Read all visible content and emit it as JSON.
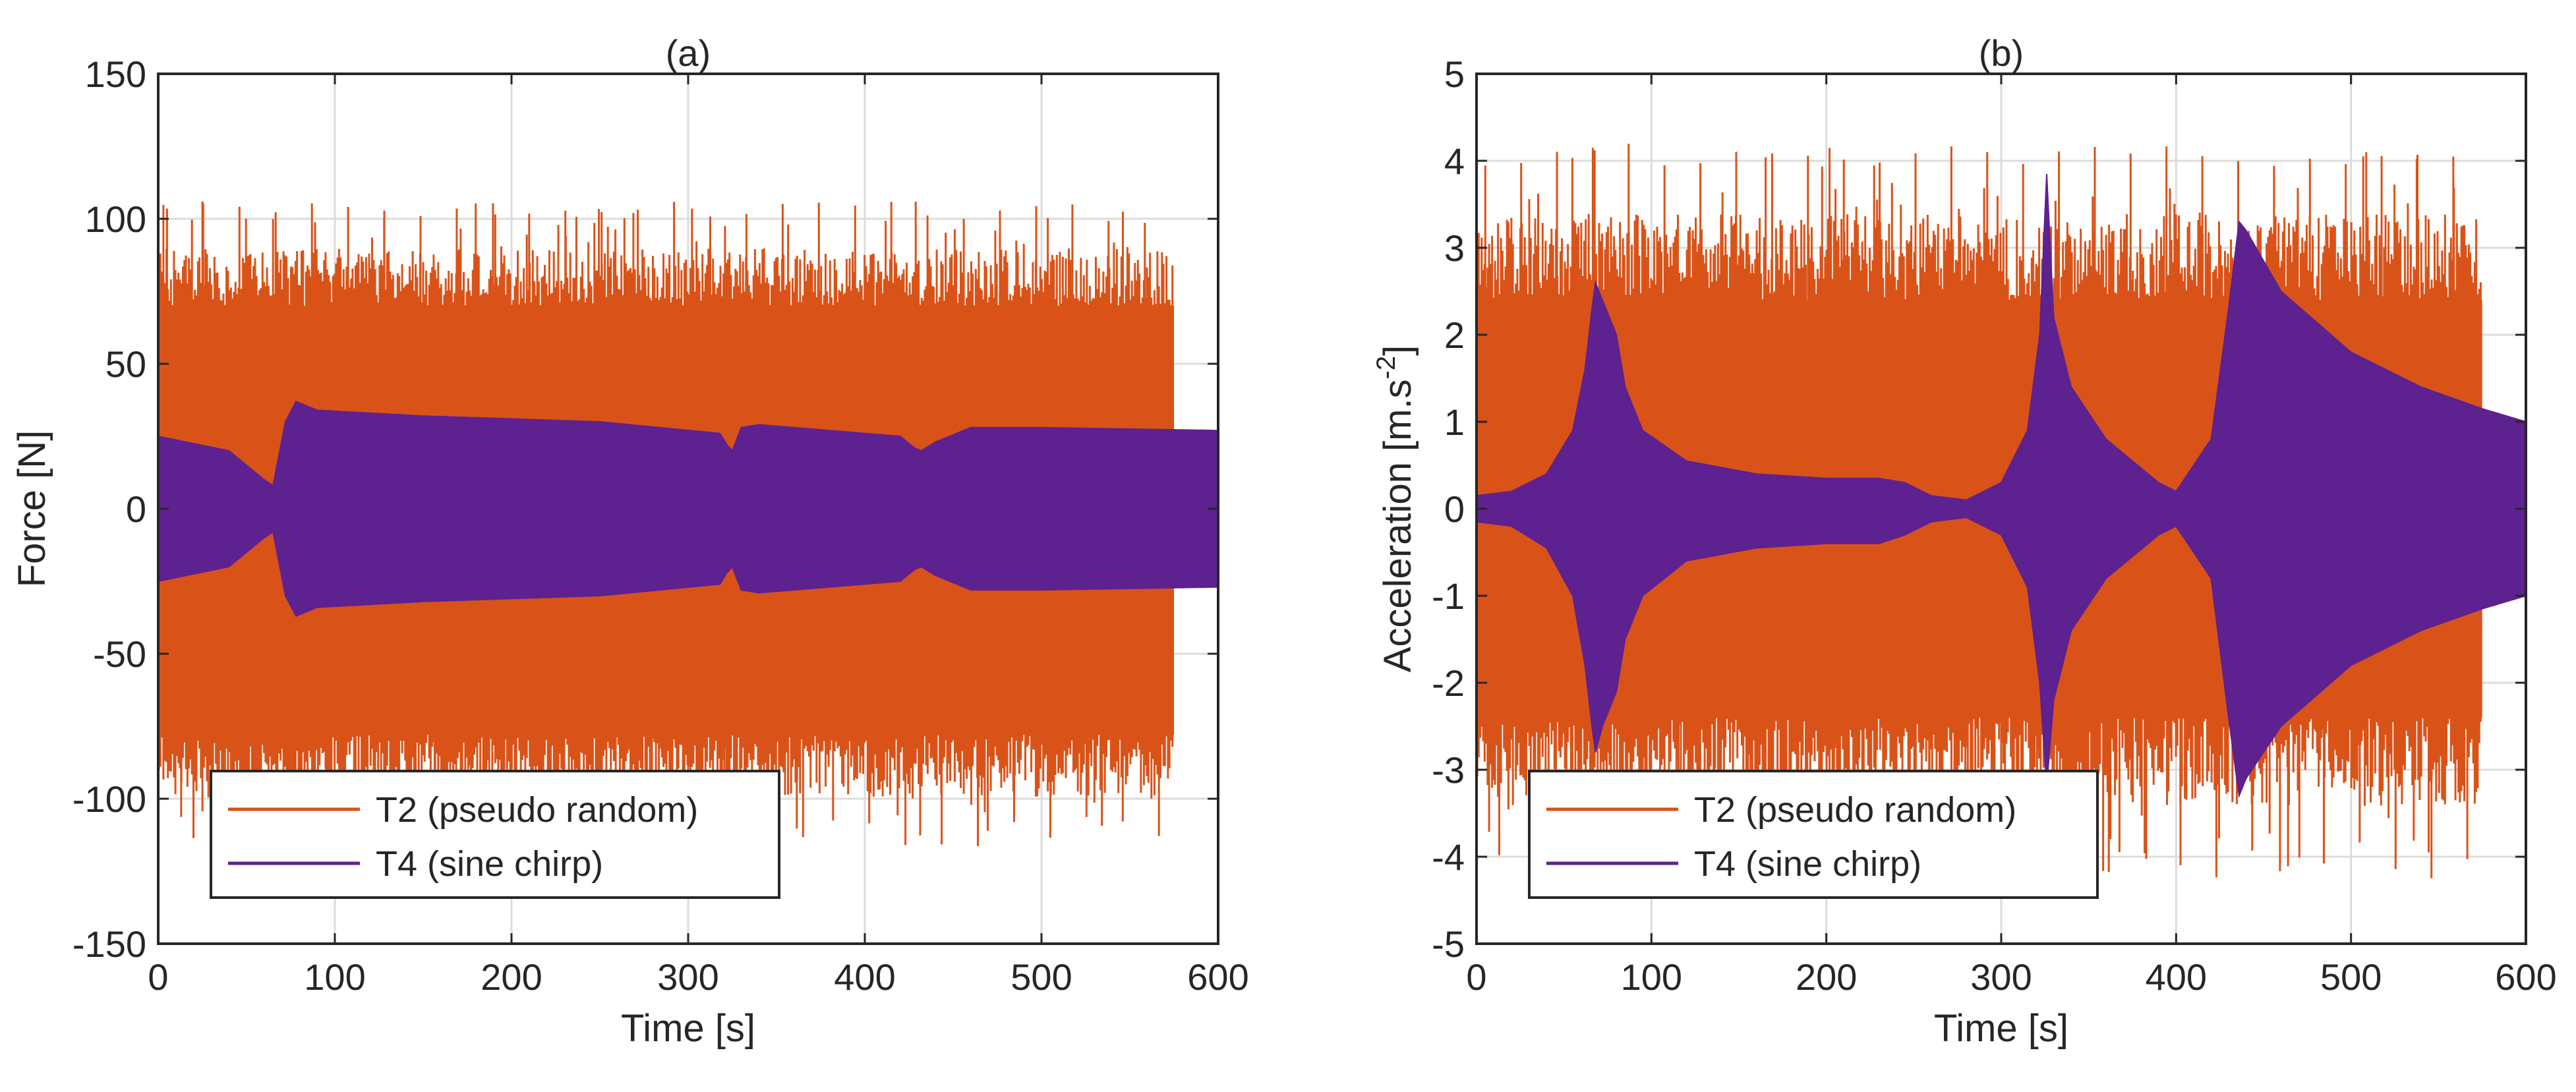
{
  "colors": {
    "t2": "#D95319",
    "t4": "#5E2190",
    "grid": "#DCDCDC",
    "axis": "#262626"
  },
  "chart_data": [
    {
      "id": "a",
      "type": "line",
      "title": "(a)",
      "xlabel": "Time [s]",
      "ylabel": "Force [N]",
      "xlim": [
        0,
        600
      ],
      "ylim": [
        -150,
        150
      ],
      "xticks": [
        "0",
        "100",
        "200",
        "300",
        "400",
        "500",
        "600"
      ],
      "yticks": [
        "150",
        "100",
        "50",
        "0",
        "-50",
        "-100",
        "-150"
      ],
      "grid": true,
      "legend_position": "bottom-left",
      "series": [
        {
          "name": "T2 (pseudo random)",
          "t_end": 575,
          "envelope_t": [
            0,
            575
          ],
          "envelope_upper": [
            70,
            70
          ],
          "envelope_lower": [
            -78,
            -78
          ],
          "spike_top_max": 106,
          "spike_bottom_min": -118
        },
        {
          "name": "T4 (sine chirp)",
          "t_end": 600,
          "envelope_t": [
            0,
            40,
            60,
            65,
            72,
            78,
            90,
            150,
            250,
            318,
            322,
            325,
            330,
            340,
            400,
            420,
            428,
            432,
            440,
            460,
            500,
            600
          ],
          "envelope_upper": [
            25,
            20,
            10,
            8,
            30,
            37,
            34,
            32,
            30,
            26,
            22,
            20,
            28,
            29,
            26,
            25,
            21,
            20,
            23,
            28,
            28,
            27
          ]
        }
      ]
    },
    {
      "id": "b",
      "type": "line",
      "title": "(b)",
      "xlabel": "Time [s]",
      "ylabel": "Acceleration [m.s",
      "ylabel_sup": "-2",
      "ylabel_end": "]",
      "xlim": [
        0,
        600
      ],
      "ylim": [
        -5,
        5
      ],
      "xticks": [
        "0",
        "100",
        "200",
        "300",
        "400",
        "500",
        "600"
      ],
      "yticks": [
        "5",
        "4",
        "3",
        "2",
        "1",
        "0",
        "-1",
        "-2",
        "-3",
        "-4",
        "-5"
      ],
      "grid": true,
      "legend_position": "bottom-left",
      "series": [
        {
          "name": "T2 (pseudo random)",
          "t_end": 575,
          "envelope_t": [
            0,
            575
          ],
          "envelope_upper": [
            2.4,
            2.4
          ],
          "envelope_lower": [
            -2.4,
            -2.4
          ],
          "spike_top_max": 4.2,
          "spike_bottom_min": -4.25
        },
        {
          "name": "T4 (sine chirp)",
          "t_end": 600,
          "envelope_t": [
            0,
            20,
            40,
            55,
            62,
            66,
            68,
            72,
            80,
            85,
            95,
            120,
            160,
            200,
            230,
            245,
            260,
            280,
            300,
            315,
            322,
            326,
            330,
            340,
            360,
            390,
            400,
            420,
            430,
            436,
            440,
            460,
            500,
            540,
            575,
            600
          ],
          "envelope_upper": [
            0.15,
            0.2,
            0.4,
            0.9,
            1.6,
            2.3,
            2.6,
            2.4,
            2.0,
            1.4,
            0.9,
            0.55,
            0.4,
            0.35,
            0.35,
            0.3,
            0.15,
            0.1,
            0.3,
            0.9,
            2.0,
            3.85,
            2.2,
            1.4,
            0.8,
            0.3,
            0.2,
            0.8,
            2.3,
            3.3,
            3.2,
            2.5,
            1.8,
            1.4,
            1.15,
            1.0
          ],
          "envelope_lower": [
            -0.15,
            -0.2,
            -0.45,
            -1.0,
            -1.8,
            -2.5,
            -2.8,
            -2.5,
            -2.1,
            -1.5,
            -1.0,
            -0.6,
            -0.45,
            -0.4,
            -0.4,
            -0.3,
            -0.15,
            -0.1,
            -0.3,
            -0.9,
            -2.0,
            -3.2,
            -2.2,
            -1.4,
            -0.8,
            -0.3,
            -0.2,
            -0.8,
            -2.4,
            -3.3,
            -3.1,
            -2.5,
            -1.8,
            -1.4,
            -1.15,
            -1.0
          ]
        }
      ]
    }
  ]
}
